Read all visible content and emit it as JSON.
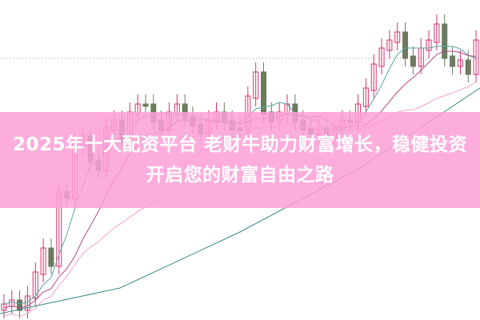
{
  "article": {
    "title": "2025年十大配资平台 老财牛助力财富增长，稳健投资开启您的财富自由之路"
  },
  "colors": {
    "banner": "#fca0d6",
    "up_candle": "#d6336c",
    "down_candle": "#6b7b5e",
    "ma_short": "#5aa6a6",
    "ma_mid": "#b24b8a",
    "ma_long": "#f0a0d0",
    "ma_longest": "#3a8a8a"
  },
  "chart_data": {
    "type": "candlestick"
  }
}
